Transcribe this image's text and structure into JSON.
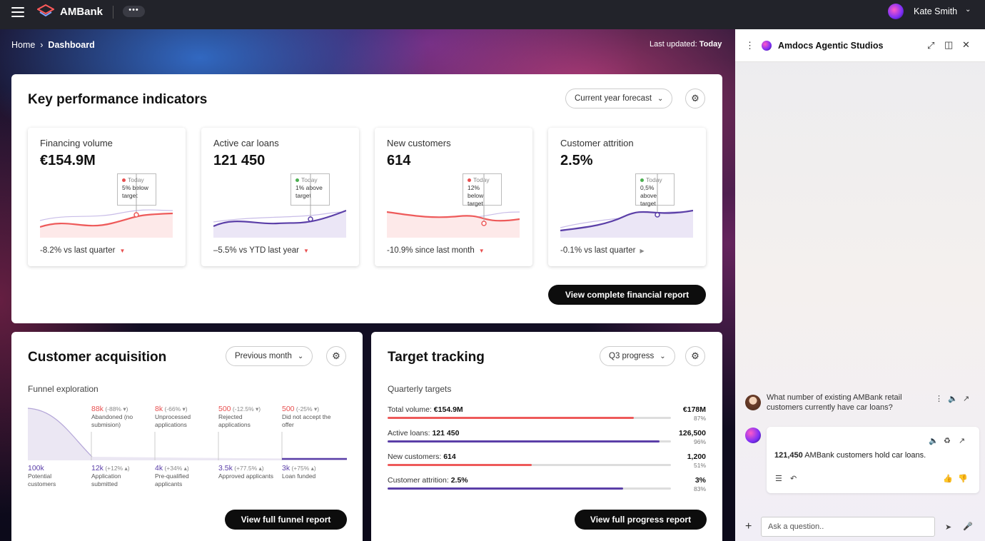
{
  "topbar": {
    "brand": "AMBank",
    "more": "•••",
    "user": "Kate Smith"
  },
  "breadcrumb": {
    "home": "Home",
    "current": "Dashboard"
  },
  "last_updated": {
    "label": "Last updated:",
    "value": "Today"
  },
  "kpi": {
    "title": "Key performance indicators",
    "dropdown": "Current year forecast",
    "button": "View complete financial report",
    "cards": [
      {
        "title": "Financing volume",
        "value": "€154.9M",
        "tip_day": "Today",
        "tip_text": "5% below target",
        "tip_color": "#e85050",
        "footer": "-8.2% vs last quarter",
        "arrow": "▼",
        "line_color": "#ee5a5a"
      },
      {
        "title": "Active car loans",
        "value": "121 450",
        "tip_day": "Today",
        "tip_text": "1% above target",
        "tip_color": "#4caf50",
        "footer": "–5.5% vs YTD last year",
        "arrow": "▼",
        "line_color": "#5b3fa8"
      },
      {
        "title": "New customers",
        "value": "614",
        "tip_day": "Today",
        "tip_text": "12% below target",
        "tip_color": "#e85050",
        "footer": "-10.9% since last month",
        "arrow": "▼",
        "line_color": "#ee5a5a"
      },
      {
        "title": "Customer attrition",
        "value": "2.5%",
        "tip_day": "Today",
        "tip_text": "0,5% above target",
        "tip_color": "#4caf50",
        "footer": "-0.1% vs last quarter",
        "arrow": "▶",
        "line_color": "#5b3fa8"
      }
    ]
  },
  "acquisition": {
    "title": "Customer acquisition",
    "dropdown": "Previous month",
    "subtitle": "Funnel exploration",
    "top_steps": [
      {
        "num": "88k",
        "delta": "(-88% ▾)",
        "label": "Abandoned (no submision)"
      },
      {
        "num": "8k",
        "delta": "(-66% ▾)",
        "label": "Unprocessed applications"
      },
      {
        "num": "500",
        "delta": "(-12.5% ▾)",
        "label": "Rejected applications"
      },
      {
        "num": "500",
        "delta": "(-25% ▾)",
        "label": "Did not accept the offer"
      }
    ],
    "bottom_steps": [
      {
        "num": "100k",
        "delta": "",
        "label": "Potential customers"
      },
      {
        "num": "12k",
        "delta": "(+12% ▴)",
        "label": "Application submitted"
      },
      {
        "num": "4k",
        "delta": "(+34% ▴)",
        "label": "Pre-qualified applicants"
      },
      {
        "num": "3.5k",
        "delta": "(+77.5% ▴)",
        "label": "Approved applicants"
      },
      {
        "num": "3k",
        "delta": "(+75% ▴)",
        "label": "Loan funded"
      }
    ],
    "button": "View full funnel report"
  },
  "target": {
    "title": "Target tracking",
    "dropdown": "Q3 progress",
    "subtitle": "Quarterly targets",
    "rows": [
      {
        "label": "Total volume:",
        "value": "€154.9M",
        "target": "€178M",
        "pct": "87%",
        "progress": 0.87,
        "color": "#ee5a5a"
      },
      {
        "label": "Active loans:",
        "value": "121 450",
        "target": "126,500",
        "pct": "96%",
        "progress": 0.96,
        "color": "#5b3fa8"
      },
      {
        "label": "New customers:",
        "value": "614",
        "target": "1,200",
        "pct": "51%",
        "progress": 0.51,
        "color": "#ee5a5a"
      },
      {
        "label": "Customer attrition:",
        "value": "2.5%",
        "target": "3%",
        "pct": "83%",
        "progress": 0.83,
        "color": "#5b3fa8"
      }
    ],
    "button": "View full progress report"
  },
  "assistant": {
    "title": "Amdocs Agentic Studios",
    "user_message": "What number of existing AMBank retail customers currently have car loans?",
    "bot_number": "121,450",
    "bot_text": "AMBank customers hold car loans.",
    "input_placeholder": "Ask a question.."
  }
}
